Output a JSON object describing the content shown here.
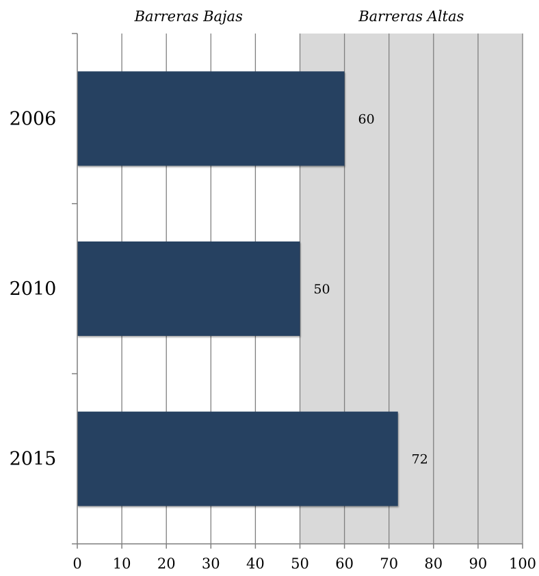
{
  "chart_data": {
    "type": "bar",
    "orientation": "horizontal",
    "categories": [
      "2006",
      "2010",
      "2015"
    ],
    "values": [
      60,
      50,
      72
    ],
    "data_labels": [
      "60",
      "50",
      "72"
    ],
    "xlim": [
      0,
      100
    ],
    "x_ticks": [
      0,
      10,
      20,
      30,
      40,
      50,
      60,
      70,
      80,
      90,
      100
    ],
    "x_tick_labels": [
      "0",
      "10",
      "20",
      "30",
      "40",
      "50",
      "60",
      "70",
      "80",
      "90",
      "100"
    ],
    "regions": [
      {
        "label": "Barreras Bajas",
        "from": 0,
        "to": 50,
        "color": "#ffffff"
      },
      {
        "label": "Barreras Altas",
        "from": 50,
        "to": 100,
        "color": "#d9d9d9"
      }
    ],
    "grid": true,
    "bar_color": "#264161",
    "title": "",
    "xlabel": "",
    "ylabel": ""
  }
}
